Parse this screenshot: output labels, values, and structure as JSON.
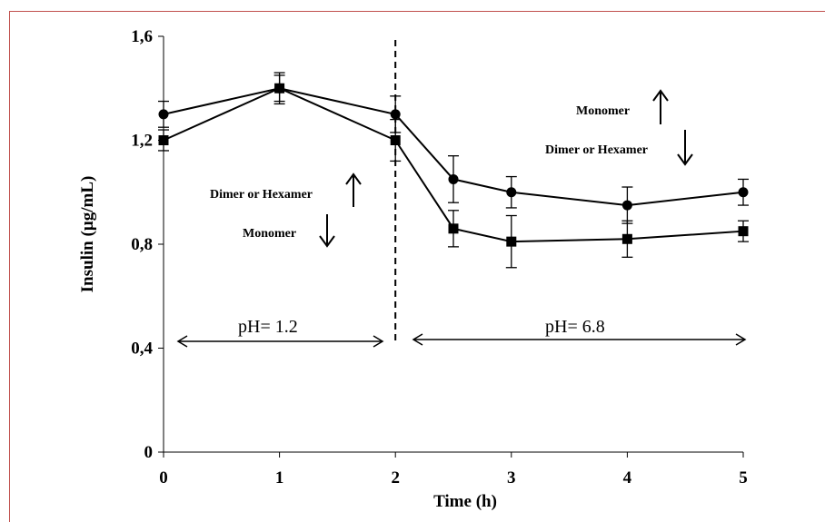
{
  "chart_data": {
    "type": "line",
    "xlabel": "Time (h)",
    "ylabel": "Insulin (µg/mL)",
    "xlim": [
      0,
      5
    ],
    "ylim": [
      0,
      1.6
    ],
    "x_ticks": [
      "0",
      "1",
      "2",
      "3",
      "4",
      "5"
    ],
    "y_ticks": [
      "0",
      "0,4",
      "0,8",
      "1,2",
      "1,6"
    ],
    "x_tick_values": [
      0,
      1,
      2,
      3,
      4,
      5
    ],
    "y_tick_values": [
      0,
      0.4,
      0.8,
      1.2,
      1.6
    ],
    "grid": false,
    "legend": "none",
    "divider_x": 2,
    "series": [
      {
        "marker": "circle",
        "x": [
          0,
          1,
          2,
          2.5,
          3,
          4,
          5
        ],
        "values": [
          1.3,
          1.4,
          1.3,
          1.05,
          1.0,
          0.95,
          1.0
        ],
        "errors": [
          0.05,
          0.05,
          0.07,
          0.09,
          0.06,
          0.07,
          0.05
        ]
      },
      {
        "marker": "square",
        "x": [
          0,
          1,
          2,
          2.5,
          3,
          4,
          5
        ],
        "values": [
          1.2,
          1.4,
          1.2,
          0.86,
          0.81,
          0.82,
          0.85
        ],
        "errors": [
          0.04,
          0.06,
          0.08,
          0.07,
          0.1,
          0.07,
          0.04
        ]
      }
    ],
    "annotations": {
      "dimer_left": "Dimer or Hexamer",
      "monomer_left": "Monomer",
      "monomer_right": "Monomer",
      "dimer_right": "Dimer or Hexamer",
      "ph_left": "pH= 1.2",
      "ph_right": "pH= 6.8"
    }
  }
}
